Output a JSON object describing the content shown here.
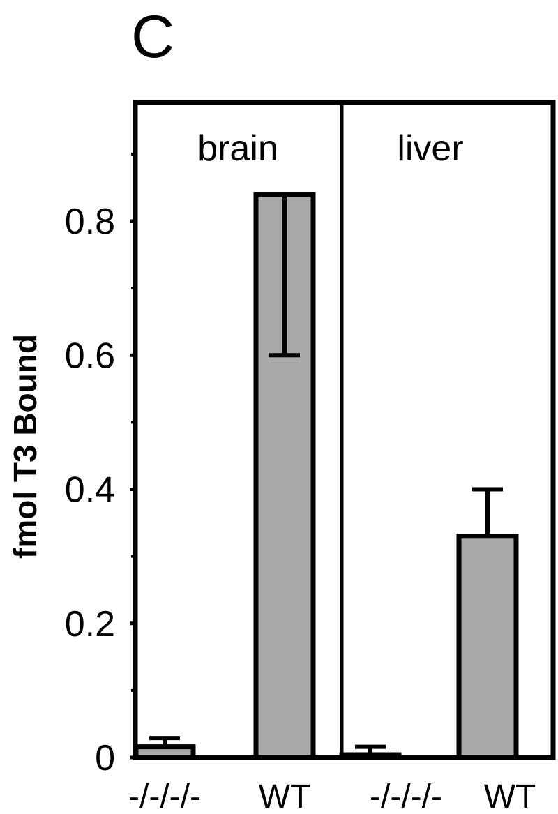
{
  "panel_label": "C",
  "chart_data": {
    "type": "bar",
    "title": "",
    "xlabel": "",
    "ylabel": "fmol T3 Bound",
    "ylim": [
      0,
      0.9
    ],
    "yticks": [
      "0",
      "0.2",
      "0.4",
      "0.6",
      "0.8"
    ],
    "grid": false,
    "panels": [
      {
        "name": "brain",
        "categories": [
          "-/-/-/-",
          "WT"
        ],
        "values": [
          0.016,
          0.84
        ],
        "error_bars": [
          {
            "low": 0.016,
            "high": 0.029
          },
          {
            "low": 0.6,
            "high": 0.84
          }
        ]
      },
      {
        "name": "liver",
        "categories": [
          "-/-/-/-",
          "WT"
        ],
        "values": [
          0.003,
          0.33
        ],
        "error_bars": [
          {
            "low": 0.003,
            "high": 0.016
          },
          {
            "low": 0.33,
            "high": 0.4
          }
        ]
      }
    ]
  }
}
